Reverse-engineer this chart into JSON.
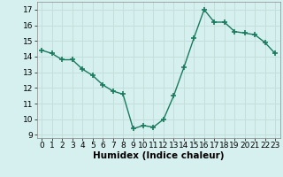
{
  "x": [
    0,
    1,
    2,
    3,
    4,
    5,
    6,
    7,
    8,
    9,
    10,
    11,
    12,
    13,
    14,
    15,
    16,
    17,
    18,
    19,
    20,
    21,
    22,
    23
  ],
  "y": [
    14.4,
    14.2,
    13.8,
    13.8,
    13.2,
    12.8,
    12.2,
    11.8,
    11.6,
    9.4,
    9.6,
    9.5,
    10.0,
    11.5,
    13.3,
    15.2,
    17.0,
    16.2,
    16.2,
    15.6,
    15.5,
    15.4,
    14.9,
    14.2
  ],
  "line_color": "#1a7a5e",
  "marker": "+",
  "marker_size": 4,
  "marker_lw": 1.2,
  "background_color": "#d6f0ef",
  "grid_color": "#c4dedc",
  "xlabel": "Humidex (Indice chaleur)",
  "xlim": [
    -0.5,
    23.5
  ],
  "ylim": [
    8.8,
    17.5
  ],
  "yticks": [
    9,
    10,
    11,
    12,
    13,
    14,
    15,
    16,
    17
  ],
  "xticks": [
    0,
    1,
    2,
    3,
    4,
    5,
    6,
    7,
    8,
    9,
    10,
    11,
    12,
    13,
    14,
    15,
    16,
    17,
    18,
    19,
    20,
    21,
    22,
    23
  ],
  "xlabel_fontsize": 7.5,
  "tick_fontsize": 6.5,
  "line_width": 1.0
}
